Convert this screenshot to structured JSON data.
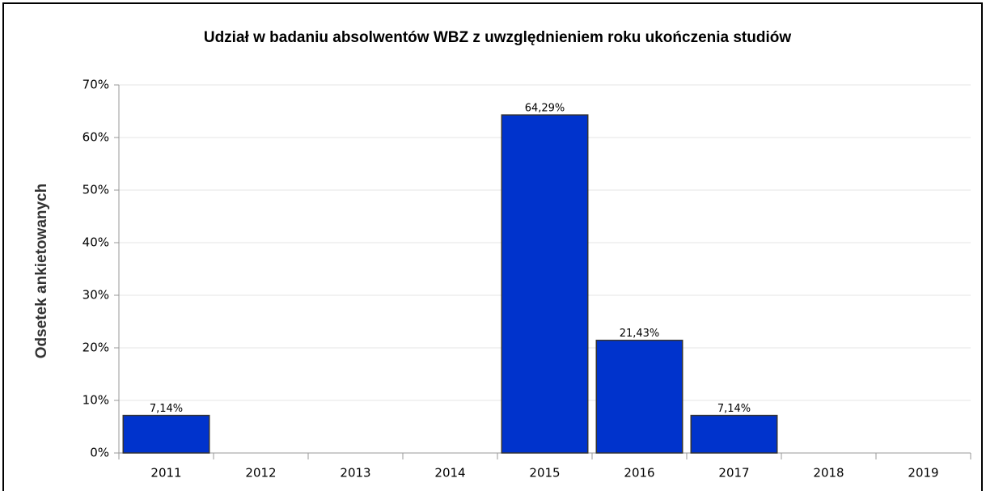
{
  "chart_data": {
    "type": "bar",
    "title": "Udział w badaniu absolwentów WBZ z uwzględnieniem roku ukończenia studiów",
    "y_label": "Odsetek ankietowanych",
    "categories": [
      "2011",
      "2012",
      "2013",
      "2014",
      "2015",
      "2016",
      "2017",
      "2018",
      "2019"
    ],
    "values": [
      7.14,
      0,
      0,
      0,
      64.29,
      21.43,
      7.14,
      0,
      0
    ],
    "value_labels": [
      "7,14%",
      null,
      null,
      null,
      "64,29%",
      "21,43%",
      "7,14%",
      null,
      null
    ],
    "color": "#0033cc",
    "ylim": [
      0,
      70
    ],
    "yticks": [
      {
        "value": 0,
        "label": "0%"
      },
      {
        "value": 10,
        "label": "10%"
      },
      {
        "value": 20,
        "label": "20%"
      },
      {
        "value": 30,
        "label": "30%"
      },
      {
        "value": 40,
        "label": "40%"
      },
      {
        "value": 50,
        "label": "50%"
      },
      {
        "value": 60,
        "label": "60%"
      },
      {
        "value": 70,
        "label": "70%"
      }
    ],
    "grid": true
  }
}
